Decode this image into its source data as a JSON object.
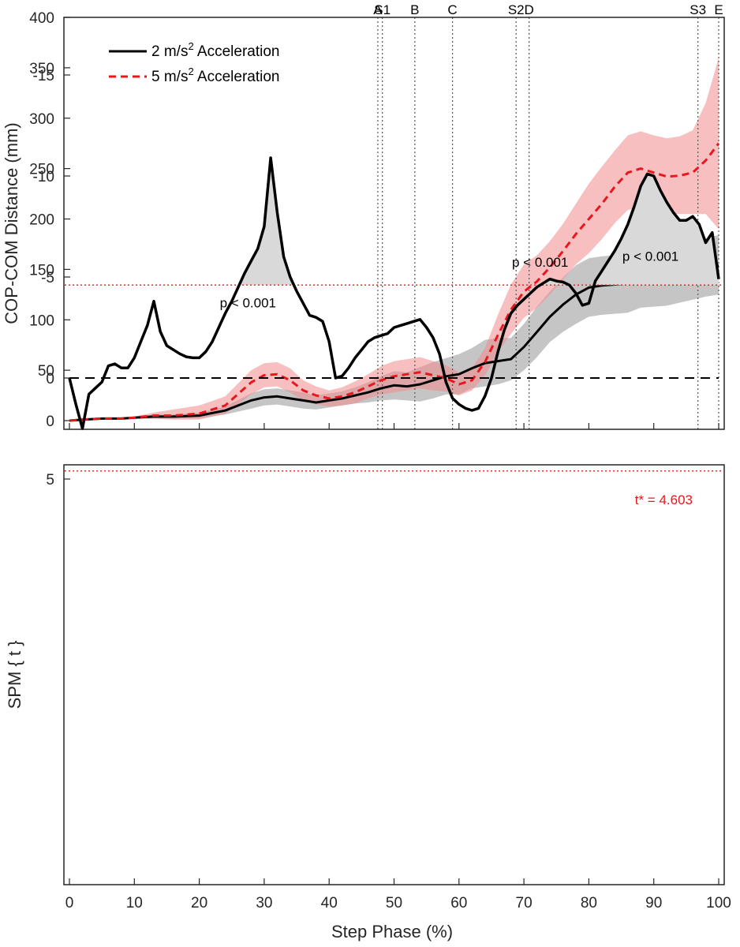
{
  "colors": {
    "black": "#000000",
    "red": "#e8171d",
    "redband": "#f08b8b",
    "grayband": "#8c8c8c",
    "cluster": "#d9d9d9"
  },
  "chart_data": [
    {
      "type": "line",
      "xlabel": "",
      "ylabel": "COP-COM Distance (mm)",
      "xlim": [
        0,
        100
      ],
      "ylim": [
        0,
        400
      ],
      "xticks": [
        "0",
        "10",
        "20",
        "30",
        "40",
        "50",
        "60",
        "70",
        "80",
        "90",
        "100"
      ],
      "yticks": [
        "0",
        "50",
        "100",
        "150",
        "200",
        "250",
        "300",
        "350",
        "400"
      ],
      "grid": false,
      "legend_position": "top-left",
      "events": [
        {
          "label": "A",
          "x": 47.5
        },
        {
          "label": "S1",
          "x": 48.2
        },
        {
          "label": "B",
          "x": 53.2
        },
        {
          "label": "C",
          "x": 59.0
        },
        {
          "label": "S2",
          "x": 68.8
        },
        {
          "label": "D",
          "x": 70.8
        },
        {
          "label": "S3",
          "x": 96.8
        },
        {
          "label": "E",
          "x": 100.0
        }
      ],
      "x": [
        0,
        2,
        5,
        8,
        10,
        13,
        16,
        20,
        24,
        28,
        30,
        32,
        34,
        36,
        38,
        40,
        42,
        44,
        46,
        48,
        50,
        52,
        54,
        56,
        58,
        60,
        62,
        64,
        66,
        68,
        70,
        72,
        74,
        76,
        78,
        80,
        82,
        84,
        86,
        88,
        90,
        92,
        94,
        96,
        98,
        100
      ],
      "series": [
        {
          "name": "2 m/s² Acceleration",
          "style": "solid",
          "values": [
            0,
            1,
            2,
            2,
            3,
            4,
            4,
            5,
            10,
            20,
            23,
            24,
            22,
            20,
            18,
            20,
            22,
            25,
            28,
            32,
            35,
            34,
            36,
            40,
            44,
            46,
            52,
            57,
            59,
            61,
            73,
            88,
            103,
            115,
            125,
            132,
            134,
            135,
            136,
            139,
            138,
            139,
            143,
            148,
            152,
            154
          ],
          "band_lower": [
            0,
            1,
            2,
            2,
            2,
            2,
            2,
            2,
            6,
            12,
            15,
            16,
            14,
            12,
            11,
            13,
            15,
            17,
            18,
            20,
            21,
            20,
            19,
            22,
            26,
            26,
            32,
            34,
            36,
            40,
            50,
            63,
            78,
            88,
            96,
            103,
            105,
            106,
            107,
            112,
            113,
            114,
            117,
            120,
            123,
            125
          ],
          "band_upper": [
            0,
            1,
            2,
            2,
            4,
            6,
            6,
            8,
            14,
            27,
            31,
            32,
            30,
            28,
            25,
            27,
            29,
            33,
            38,
            44,
            49,
            48,
            53,
            58,
            62,
            66,
            72,
            80,
            82,
            82,
            96,
            113,
            128,
            142,
            154,
            161,
            163,
            164,
            165,
            166,
            163,
            164,
            169,
            176,
            181,
            184
          ]
        },
        {
          "name": "5 m/s² Acceleration",
          "style": "dashed",
          "values": [
            0,
            1,
            2,
            2,
            3,
            5,
            5,
            7,
            15,
            38,
            45,
            46,
            40,
            30,
            25,
            22,
            24,
            28,
            34,
            40,
            44,
            46,
            48,
            45,
            42,
            36,
            40,
            58,
            85,
            110,
            128,
            138,
            152,
            168,
            185,
            200,
            215,
            232,
            246,
            250,
            246,
            242,
            243,
            246,
            258,
            275
          ],
          "band_lower": [
            0,
            1,
            2,
            2,
            2,
            2,
            1,
            1,
            7,
            26,
            33,
            34,
            28,
            20,
            16,
            14,
            15,
            17,
            22,
            26,
            28,
            30,
            32,
            30,
            29,
            25,
            30,
            45,
            68,
            86,
            102,
            112,
            125,
            140,
            155,
            166,
            180,
            196,
            209,
            212,
            208,
            205,
            205,
            205,
            205,
            190
          ],
          "band_upper": [
            0,
            1,
            2,
            2,
            4,
            8,
            11,
            15,
            24,
            50,
            57,
            58,
            52,
            40,
            34,
            30,
            33,
            39,
            46,
            54,
            59,
            61,
            63,
            59,
            55,
            48,
            52,
            72,
            105,
            135,
            155,
            164,
            178,
            195,
            215,
            235,
            252,
            268,
            283,
            287,
            283,
            280,
            282,
            288,
            315,
            360
          ]
        }
      ]
    },
    {
      "type": "line",
      "xlabel": "Step Phase (%)",
      "ylabel": "SPM { t }",
      "xlim": [
        0,
        100
      ],
      "ylim": [
        -15,
        5
      ],
      "xticks": [
        "0",
        "10",
        "20",
        "30",
        "40",
        "50",
        "60",
        "70",
        "80",
        "90",
        "100"
      ],
      "yticks": [
        "5",
        "0",
        "-5",
        "-10",
        "-15"
      ],
      "grid": false,
      "threshold": {
        "value": 4.603,
        "label": "t* = 4.603"
      },
      "zero_line": 0,
      "annotations": [
        {
          "text": "p < 0.001",
          "x": 27.5,
          "y": -3.5
        },
        {
          "text": "p < 0.001",
          "x": 72.5,
          "y": -5.5
        },
        {
          "text": "p < 0.001",
          "x": 89.5,
          "y": -5.8
        }
      ],
      "series": [
        {
          "name": "",
          "x": [
            0,
            1,
            2,
            3,
            4,
            5,
            6,
            7,
            8,
            9,
            10,
            11,
            12,
            13,
            14,
            15,
            16,
            17,
            18,
            19,
            20,
            21,
            22,
            23,
            24,
            25,
            26,
            27,
            28,
            29,
            30,
            31,
            32,
            33,
            34,
            35,
            36,
            37,
            38,
            39,
            40,
            41,
            42,
            43,
            44,
            45,
            46,
            47,
            48,
            49,
            50,
            51,
            52,
            53,
            54,
            55,
            56,
            57,
            58,
            59,
            60,
            61,
            62,
            63,
            64,
            65,
            66,
            67,
            68,
            69,
            70,
            71,
            72,
            73,
            74,
            75,
            76,
            77,
            78,
            79,
            80,
            81,
            82,
            83,
            84,
            85,
            86,
            87,
            88,
            89,
            90,
            91,
            92,
            93,
            94,
            95,
            96,
            97,
            98,
            99,
            100
          ],
          "values": [
            0,
            1.3,
            2.5,
            0.8,
            0.5,
            0.2,
            -0.6,
            -0.7,
            -0.5,
            -0.5,
            -1.0,
            -1.8,
            -2.6,
            -3.8,
            -2.3,
            -1.6,
            -1.4,
            -1.2,
            -1.05,
            -1.0,
            -1.0,
            -1.3,
            -1.8,
            -2.5,
            -3.2,
            -3.8,
            -4.5,
            -5.2,
            -5.8,
            -6.4,
            -7.5,
            -10.9,
            -8.2,
            -6.0,
            -5.0,
            -4.3,
            -3.7,
            -3.1,
            -3.0,
            -2.8,
            -1.8,
            0.0,
            -0.1,
            -0.5,
            -1.0,
            -1.4,
            -1.8,
            -2.0,
            -2.1,
            -2.2,
            -2.5,
            -2.6,
            -2.7,
            -2.8,
            -2.9,
            -2.5,
            -2.0,
            -1.2,
            0.2,
            1.0,
            1.3,
            1.5,
            1.6,
            1.5,
            0.9,
            0.0,
            -1.3,
            -2.4,
            -3.2,
            -3.6,
            -3.9,
            -4.2,
            -4.5,
            -4.7,
            -4.9,
            -4.8,
            -4.75,
            -4.6,
            -4.2,
            -3.6,
            -3.7,
            -4.8,
            -5.3,
            -5.8,
            -6.3,
            -6.9,
            -7.6,
            -8.5,
            -9.5,
            -10.1,
            -10.0,
            -9.3,
            -8.7,
            -8.2,
            -7.8,
            -7.8,
            -8.0,
            -7.6,
            -6.7,
            -7.2,
            -4.9
          ]
        }
      ]
    }
  ]
}
